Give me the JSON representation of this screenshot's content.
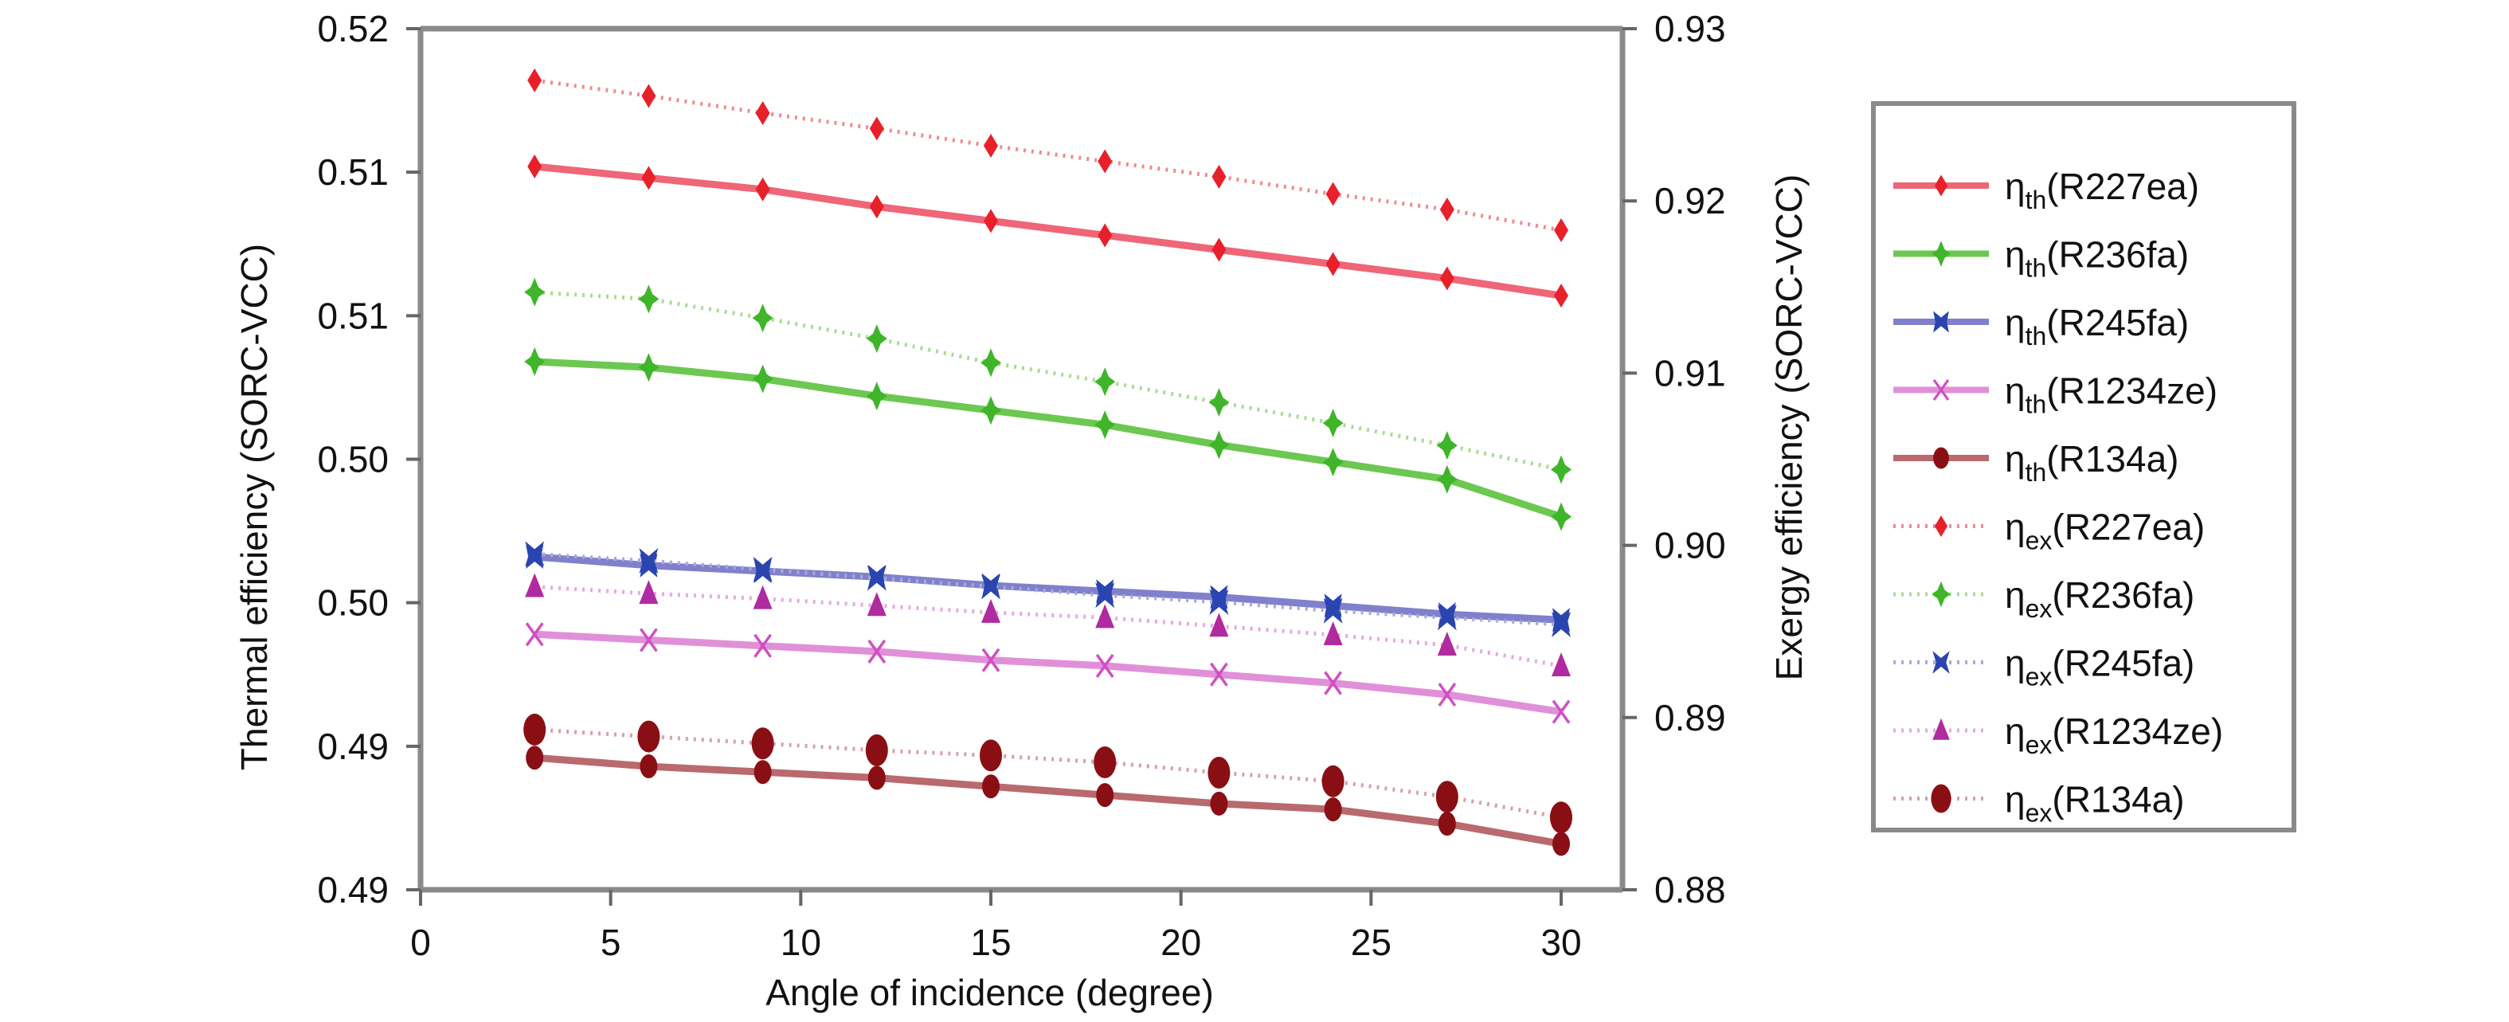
{
  "chart_data": {
    "type": "line",
    "title": "",
    "xlabel": "Angle of incidence (degree)",
    "ylabel_left": "Thermal efficiency (SORC-VCC)",
    "ylabel_right": "Exergy efficiency (SORC-VCC)",
    "x": [
      3,
      6,
      9,
      12,
      15,
      18,
      21,
      24,
      27,
      30
    ],
    "xlim": [
      0,
      32
    ],
    "xticks": [
      0,
      5,
      10,
      15,
      20,
      25,
      30
    ],
    "xtick_labels": [
      "0",
      "5",
      "10",
      "15",
      "20",
      "25",
      "30"
    ],
    "ylim_left": [
      0.49,
      0.52
    ],
    "yticks_left": [
      0.52,
      0.515,
      0.51,
      0.505,
      0.5,
      0.495,
      0.49
    ],
    "ytick_labels_left": [
      "0.52",
      "0.51",
      "0.51",
      "0.50",
      "0.50",
      "0.49",
      "0.49"
    ],
    "ylim_right": [
      0.88,
      0.93
    ],
    "yticks_right": [
      0.93,
      0.92,
      0.91,
      0.9,
      0.89,
      0.88
    ],
    "ytick_labels_right": [
      "0.93",
      "0.92",
      "0.91",
      "0.90",
      "0.89",
      "0.88"
    ],
    "grid": false,
    "legend_position": "right",
    "series": [
      {
        "name": "ηth(R227ea)",
        "symbol": "η",
        "sub": "th",
        "fluid": "(R227ea)",
        "axis": "left",
        "style": "solid",
        "marker": "diamond",
        "color": "#e8202a",
        "line_color": "#ee6677",
        "values": [
          0.5152,
          0.5148,
          0.5144,
          0.5138,
          0.5133,
          0.5128,
          0.5123,
          0.5118,
          0.5113,
          0.5107
        ]
      },
      {
        "name": "ηth(R236fa)",
        "symbol": "η",
        "sub": "th",
        "fluid": "(R236fa)",
        "axis": "left",
        "style": "solid",
        "marker": "plus-diamond",
        "color": "#3fb52a",
        "line_color": "#6cc850",
        "values": [
          0.5084,
          0.5082,
          0.5078,
          0.5072,
          0.5067,
          0.5062,
          0.5055,
          0.5049,
          0.5043,
          0.503
        ]
      },
      {
        "name": "ηth(R245fa)",
        "symbol": "η",
        "sub": "th",
        "fluid": "(R245fa)",
        "axis": "left",
        "style": "solid",
        "marker": "bowtie",
        "color": "#2a44b0",
        "line_color": "#8080cc",
        "values": [
          0.5016,
          0.5013,
          0.5011,
          0.5009,
          0.5006,
          0.5004,
          0.5002,
          0.4999,
          0.4996,
          0.4994
        ]
      },
      {
        "name": "ηth(R1234ze)",
        "symbol": "η",
        "sub": "th",
        "fluid": "(R1234ze)",
        "axis": "left",
        "style": "solid",
        "marker": "x",
        "color": "#d050c0",
        "line_color": "#e090d8",
        "values": [
          0.4989,
          0.4987,
          0.4985,
          0.4983,
          0.498,
          0.4978,
          0.4975,
          0.4972,
          0.4968,
          0.4962
        ]
      },
      {
        "name": "ηth(R134a)",
        "symbol": "η",
        "sub": "th",
        "fluid": "(R134a)",
        "axis": "left",
        "style": "solid",
        "marker": "circle",
        "color": "#8a0f14",
        "line_color": "#b86a6e",
        "values": [
          0.4946,
          0.4943,
          0.4941,
          0.4939,
          0.4936,
          0.4933,
          0.493,
          0.4928,
          0.4923,
          0.4916
        ]
      },
      {
        "name": "ηex(R227ea)",
        "symbol": "η",
        "sub": "ex",
        "fluid": "(R227ea)",
        "axis": "right",
        "style": "dotted",
        "marker": "diamond",
        "color": "#e8202a",
        "line_color": "#f08a94",
        "values": [
          0.927,
          0.9261,
          0.9251,
          0.9242,
          0.9232,
          0.9223,
          0.9214,
          0.9204,
          0.9195,
          0.9183
        ]
      },
      {
        "name": "ηex(R236fa)",
        "symbol": "η",
        "sub": "ex",
        "fluid": "(R236fa)",
        "axis": "right",
        "style": "dotted",
        "marker": "plus-diamond",
        "color": "#3fb52a",
        "line_color": "#a8dc90",
        "values": [
          0.9147,
          0.9143,
          0.9132,
          0.912,
          0.9106,
          0.9095,
          0.9083,
          0.9071,
          0.9058,
          0.9044
        ]
      },
      {
        "name": "ηex(R245fa)",
        "symbol": "η",
        "sub": "ex",
        "fluid": "(R245fa)",
        "axis": "right",
        "style": "dotted",
        "marker": "x-bold",
        "color": "#2a44b0",
        "line_color": "#a8a8d8",
        "values": [
          0.8995,
          0.8991,
          0.8986,
          0.8981,
          0.8976,
          0.8971,
          0.8967,
          0.8962,
          0.8958,
          0.8954
        ]
      },
      {
        "name": "ηex(R1234ze)",
        "symbol": "η",
        "sub": "ex",
        "fluid": "(R1234ze)",
        "axis": "right",
        "style": "dotted",
        "marker": "triangle",
        "color": "#b02aa0",
        "line_color": "#e8a8e0",
        "values": [
          0.8976,
          0.8972,
          0.8969,
          0.8965,
          0.8961,
          0.8958,
          0.8953,
          0.8948,
          0.8942,
          0.893
        ]
      },
      {
        "name": "ηex(R134a)",
        "symbol": "η",
        "sub": "ex",
        "fluid": "(R134a)",
        "axis": "right",
        "style": "dotted",
        "marker": "big-circle",
        "color": "#8a0f14",
        "line_color": "#d8a0a4",
        "values": [
          0.8893,
          0.8889,
          0.8885,
          0.8881,
          0.8878,
          0.8874,
          0.8868,
          0.8863,
          0.8854,
          0.8842
        ]
      }
    ]
  }
}
